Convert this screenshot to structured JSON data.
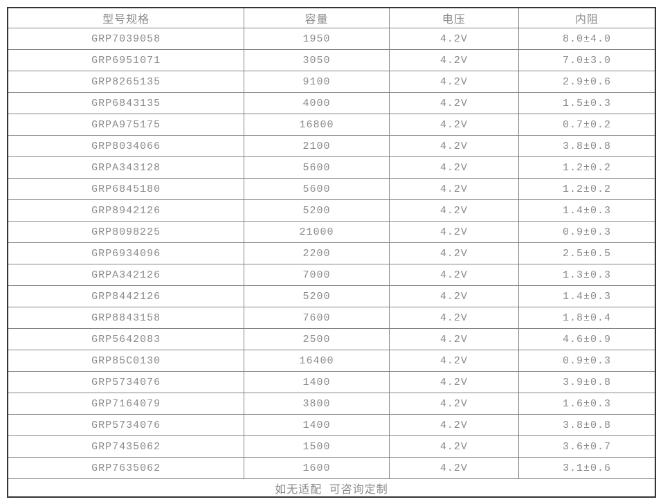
{
  "colors": {
    "outer_border": "#333333",
    "inner_border": "#848484",
    "text": "#8a8a8a",
    "background": "#ffffff"
  },
  "chart_data": {
    "type": "table",
    "title": "",
    "columns": [
      "型号规格",
      "容量",
      "电压",
      "内阻"
    ],
    "rows": [
      [
        "GRP7039058",
        "1950",
        "4.2V",
        "8.0±4.0"
      ],
      [
        "GRP6951071",
        "3050",
        "4.2V",
        "7.0±3.0"
      ],
      [
        "GRP8265135",
        "9100",
        "4.2V",
        "2.9±0.6"
      ],
      [
        "GRP6843135",
        "4000",
        "4.2V",
        "1.5±0.3"
      ],
      [
        "GRPA975175",
        "16800",
        "4.2V",
        "0.7±0.2"
      ],
      [
        "GRP8034066",
        "2100",
        "4.2V",
        "3.8±0.8"
      ],
      [
        "GRPA343128",
        "5600",
        "4.2V",
        "1.2±0.2"
      ],
      [
        "GRP6845180",
        "5600",
        "4.2V",
        "1.2±0.2"
      ],
      [
        "GRP8942126",
        "5200",
        "4.2V",
        "1.4±0.3"
      ],
      [
        "GRP8098225",
        "21000",
        "4.2V",
        "0.9±0.3"
      ],
      [
        "GRP6934096",
        "2200",
        "4.2V",
        "2.5±0.5"
      ],
      [
        "GRPA342126",
        "7000",
        "4.2V",
        "1.3±0.3"
      ],
      [
        "GRP8442126",
        "5200",
        "4.2V",
        "1.4±0.3"
      ],
      [
        "GRP8843158",
        "7600",
        "4.2V",
        "1.8±0.4"
      ],
      [
        "GRP5642083",
        "2500",
        "4.2V",
        "4.6±0.9"
      ],
      [
        "GRP85C0130",
        "16400",
        "4.2V",
        "0.9±0.3"
      ],
      [
        "GRP5734076",
        "1400",
        "4.2V",
        "3.9±0.8"
      ],
      [
        "GRP7164079",
        "3800",
        "4.2V",
        "1.6±0.3"
      ],
      [
        "GRP5734076",
        "1400",
        "4.2V",
        "3.8±0.8"
      ],
      [
        "GRP7435062",
        "1500",
        "4.2V",
        "3.6±0.7"
      ],
      [
        "GRP7635062",
        "1600",
        "4.2V",
        "3.1±0.6"
      ]
    ],
    "footer": "如无适配 可咨询定制",
    "layout": {
      "grid": "full-borders",
      "header_position": "top",
      "footer_spans_all_columns": true
    }
  }
}
